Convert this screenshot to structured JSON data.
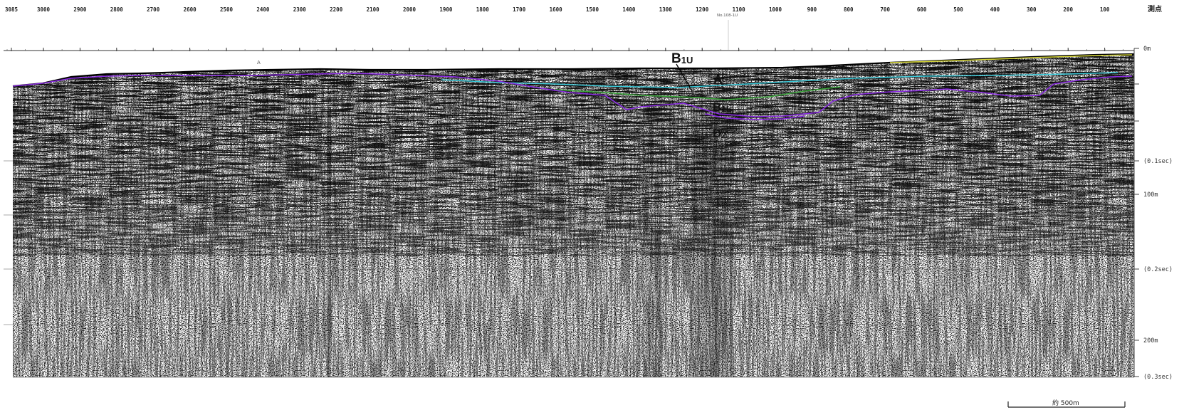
{
  "header": {
    "survey_points": [
      "3085",
      "3000",
      "2900",
      "2800",
      "2700",
      "2600",
      "2500",
      "2400",
      "2300",
      "2200",
      "2100",
      "2000",
      "1900",
      "1800",
      "1700",
      "1600",
      "1500",
      "1400",
      "1300",
      "1200",
      "1100",
      "1000",
      "900",
      "800",
      "700",
      "600",
      "500",
      "400",
      "300",
      "200",
      "100"
    ],
    "survey_unit_label": "測点",
    "station_marker": "No.108-1U",
    "point_a_label": "A"
  },
  "depth_axis": {
    "labels": [
      "0m",
      "(0.1sec)",
      "100m",
      "(0.2sec)",
      "200m",
      "(0.3sec)"
    ]
  },
  "layers": {
    "b1u": {
      "main": "B",
      "sub": "1U"
    },
    "a": {
      "main": "A"
    },
    "b1l": {
      "main": "B",
      "sub": "1L"
    },
    "d2": {
      "main": "D",
      "sub": "2"
    }
  },
  "scale_bar": {
    "label": "約 500m"
  },
  "colors": {
    "background": "#ffffff",
    "seismic_ink": "#111111",
    "horizon_purple": "#8a2be2",
    "horizon_cyan": "#38c8d8",
    "horizon_green": "#3aa63a",
    "horizon_yellow": "#d8d838"
  }
}
